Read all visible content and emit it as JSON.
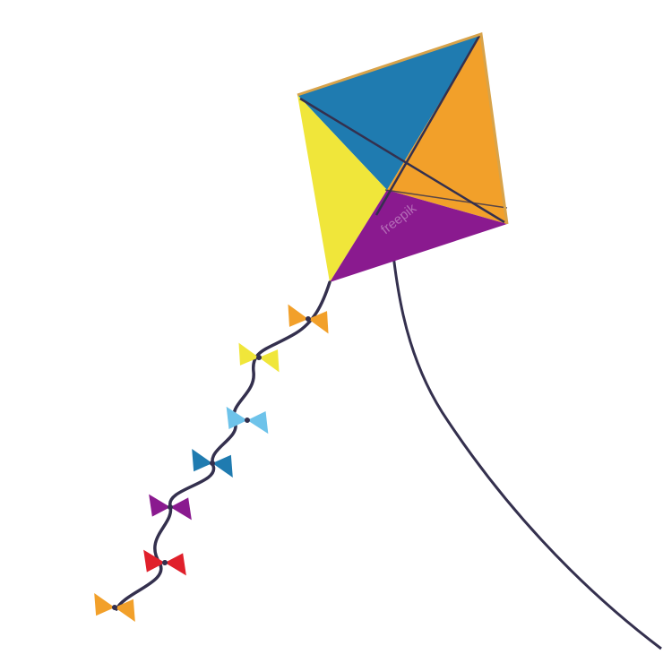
{
  "illustration": {
    "subject": "kite",
    "watermark_text": "freepik"
  },
  "colors": {
    "background": "#ffffff",
    "kite_top": "#1f7bb0",
    "kite_right": "#f2a02a",
    "kite_left": "#f0e63a",
    "kite_bottom": "#8a1a8f",
    "frame": "#d8a34a",
    "string": "#34304e",
    "bows": [
      "#f2a02a",
      "#f0e63a",
      "#6ec3ea",
      "#1f7bb0",
      "#8a1a8f",
      "#e0202b",
      "#f2a02a"
    ]
  }
}
